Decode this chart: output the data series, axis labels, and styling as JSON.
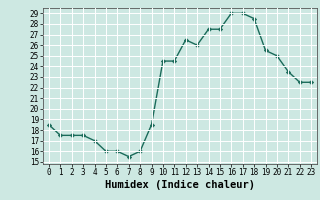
{
  "xlabel": "Humidex (Indice chaleur)",
  "ylabel": "",
  "x": [
    0,
    1,
    2,
    3,
    4,
    5,
    6,
    7,
    8,
    9,
    10,
    11,
    12,
    13,
    14,
    15,
    16,
    17,
    18,
    19,
    20,
    21,
    22,
    23
  ],
  "y": [
    18.5,
    17.5,
    17.5,
    17.5,
    17.0,
    16.0,
    16.0,
    15.5,
    16.0,
    18.5,
    24.5,
    24.5,
    26.5,
    26.0,
    27.5,
    27.5,
    29.0,
    29.0,
    28.5,
    25.5,
    25.0,
    23.5,
    22.5,
    22.5
  ],
  "line_color": "#1a6b5a",
  "marker": "D",
  "markersize": 2.2,
  "linewidth": 1.0,
  "ylim": [
    15,
    29
  ],
  "xlim": [
    -0.5,
    23.5
  ],
  "yticks": [
    15,
    16,
    17,
    18,
    19,
    20,
    21,
    22,
    23,
    24,
    25,
    26,
    27,
    28,
    29
  ],
  "xticks": [
    0,
    1,
    2,
    3,
    4,
    5,
    6,
    7,
    8,
    9,
    10,
    11,
    12,
    13,
    14,
    15,
    16,
    17,
    18,
    19,
    20,
    21,
    22,
    23
  ],
  "xtick_labels": [
    "0",
    "1",
    "2",
    "3",
    "4",
    "5",
    "6",
    "7",
    "8",
    "9",
    "10",
    "11",
    "12",
    "13",
    "14",
    "15",
    "16",
    "17",
    "18",
    "19",
    "20",
    "21",
    "22",
    "23"
  ],
  "bg_color": "#cde8e2",
  "grid_color": "#ffffff",
  "tick_fontsize": 5.5,
  "xlabel_fontsize": 7.5,
  "xlabel_fontweight": "bold"
}
